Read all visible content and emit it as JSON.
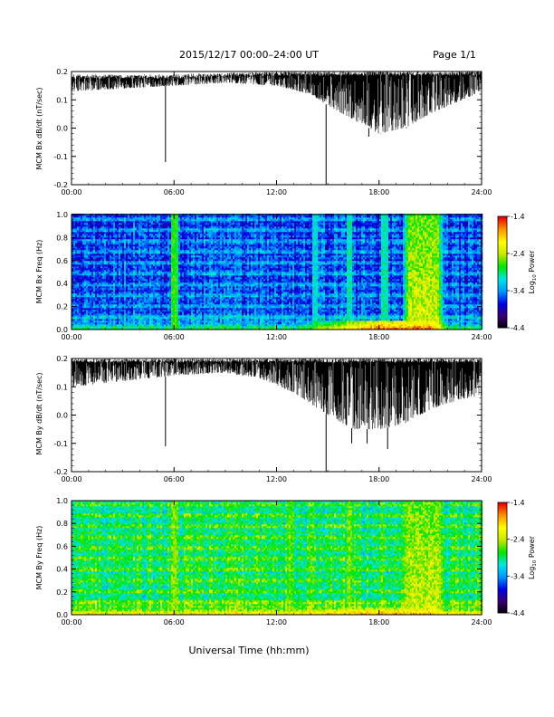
{
  "header": {
    "title": "2015/12/17   00:00–24:00 UT",
    "page_label": "Page 1/1"
  },
  "footer": {
    "xlabel": "Universal Time (hh:mm)"
  },
  "colorbar": {
    "ticks": [
      "-1.4",
      "-2.4",
      "-3.4",
      "-4.4"
    ],
    "tick_values": [
      -1.4,
      -2.4,
      -3.4,
      -4.4
    ],
    "label_main": "Log",
    "label_sub": "10",
    "label_tail": " Power",
    "colors": [
      "#000000",
      "#3a006e",
      "#0000e6",
      "#0096ff",
      "#00e6e6",
      "#00e600",
      "#c8e600",
      "#ffff00",
      "#ff9600",
      "#e60000"
    ]
  },
  "chart_data": [
    {
      "type": "line",
      "ylabel": "MCM Bx dB/dt (nT/sec)",
      "xlim": [
        0,
        24
      ],
      "ylim": [
        -0.2,
        0.2
      ],
      "xticks": [
        "00:00",
        "06:00",
        "12:00",
        "18:00",
        "24:00"
      ],
      "xtick_values": [
        0,
        6,
        12,
        18,
        24
      ],
      "yticks": [
        "-0.2",
        "-0.1",
        "0.0",
        "0.1",
        "0.2"
      ],
      "ytick_values": [
        -0.2,
        -0.1,
        0.0,
        0.1,
        0.2
      ],
      "series_color": "#000000",
      "upper_envelope": [
        [
          0,
          0.19
        ],
        [
          6,
          0.19
        ],
        [
          12,
          0.2
        ],
        [
          15,
          0.2
        ],
        [
          18,
          0.2
        ],
        [
          24,
          0.2
        ]
      ],
      "lower_envelope": [
        [
          0,
          0.13
        ],
        [
          3,
          0.14
        ],
        [
          6,
          0.15
        ],
        [
          9,
          0.16
        ],
        [
          12,
          0.15
        ],
        [
          14,
          0.12
        ],
        [
          15,
          0.08
        ],
        [
          16.5,
          0.03
        ],
        [
          18,
          -0.02
        ],
        [
          19.5,
          0.0
        ],
        [
          21,
          0.05
        ],
        [
          22.5,
          0.09
        ],
        [
          24,
          0.13
        ]
      ],
      "spikes": [
        [
          5.5,
          -0.12
        ],
        [
          14.9,
          -0.2
        ],
        [
          17.4,
          -0.03
        ],
        [
          18.1,
          -0.02
        ],
        [
          19.6,
          0.0
        ]
      ]
    },
    {
      "type": "heatmap",
      "ylabel": "MCM Bx Freq (Hz)",
      "xlim": [
        0,
        24
      ],
      "ylim": [
        0,
        1.0
      ],
      "xticks": [
        "00:00",
        "06:00",
        "12:00",
        "18:00",
        "24:00"
      ],
      "xtick_values": [
        0,
        6,
        12,
        18,
        24
      ],
      "yticks": [
        "0.0",
        "0.2",
        "0.4",
        "0.6",
        "0.8",
        "1.0"
      ],
      "ytick_values": [
        0,
        0.2,
        0.4,
        0.6,
        0.8,
        1.0
      ],
      "zlim": [
        -4.4,
        -1.4
      ],
      "z_baseline": -3.6,
      "features": {
        "low_freq_enhancement": {
          "t_start": 13,
          "t_end": 22,
          "f_max": 0.08,
          "z_peak": -1.5
        },
        "broadband_burst": {
          "t_start": 19.3,
          "t_end": 21.8,
          "z": -2.3
        },
        "vertical_stripes": [
          {
            "t": 6.0,
            "z": -2.7
          },
          {
            "t": 6.1,
            "z": -2.8
          },
          {
            "t": 14.2,
            "z": -3.1
          },
          {
            "t": 16.2,
            "z": -3.0
          },
          {
            "t": 18.3,
            "z": -3.0
          }
        ]
      }
    },
    {
      "type": "line",
      "ylabel": "MCM By dB/dt (nT/sec)",
      "xlim": [
        0,
        24
      ],
      "ylim": [
        -0.2,
        0.2
      ],
      "xticks": [
        "00:00",
        "06:00",
        "12:00",
        "18:00",
        "24:00"
      ],
      "xtick_values": [
        0,
        6,
        12,
        18,
        24
      ],
      "yticks": [
        "-0.2",
        "-0.1",
        "0.0",
        "0.1",
        "0.2"
      ],
      "ytick_values": [
        -0.2,
        -0.1,
        0.0,
        0.1,
        0.2
      ],
      "series_color": "#000000",
      "upper_envelope": [
        [
          0,
          0.2
        ],
        [
          24,
          0.2
        ]
      ],
      "lower_envelope": [
        [
          0,
          0.1
        ],
        [
          3,
          0.12
        ],
        [
          6,
          0.14
        ],
        [
          9,
          0.15
        ],
        [
          11,
          0.13
        ],
        [
          13,
          0.08
        ],
        [
          15,
          0.0
        ],
        [
          16.5,
          -0.05
        ],
        [
          18,
          -0.05
        ],
        [
          19.5,
          -0.03
        ],
        [
          21,
          0.02
        ],
        [
          22.5,
          0.05
        ],
        [
          24,
          0.07
        ]
      ],
      "spikes": [
        [
          5.5,
          -0.11
        ],
        [
          14.9,
          -0.2
        ],
        [
          16.4,
          -0.1
        ],
        [
          17.3,
          -0.1
        ],
        [
          18.5,
          -0.12
        ]
      ]
    },
    {
      "type": "heatmap",
      "ylabel": "MCM By Freq (Hz)",
      "xlim": [
        0,
        24
      ],
      "ylim": [
        0,
        1.0
      ],
      "xticks": [
        "00:00",
        "06:00",
        "12:00",
        "18:00",
        "24:00"
      ],
      "xtick_values": [
        0,
        6,
        12,
        18,
        24
      ],
      "yticks": [
        "0.0",
        "0.2",
        "0.4",
        "0.6",
        "0.8",
        "1.0"
      ],
      "ytick_values": [
        0,
        0.2,
        0.4,
        0.6,
        0.8,
        1.0
      ],
      "zlim": [
        -4.4,
        -1.4
      ],
      "z_baseline": -2.9,
      "features": {
        "low_freq_enhancement": {
          "t_start": 12,
          "t_end": 22,
          "f_max": 0.07,
          "z_peak": -1.7
        },
        "broadband_burst": {
          "t_start": 19.3,
          "t_end": 21.8,
          "z": -2.3
        },
        "vertical_stripes": [
          {
            "t": 6.0,
            "z": -2.6
          },
          {
            "t": 6.1,
            "z": -2.6
          },
          {
            "t": 12.8,
            "z": -2.7
          },
          {
            "t": 16.2,
            "z": -2.6
          }
        ]
      }
    }
  ]
}
